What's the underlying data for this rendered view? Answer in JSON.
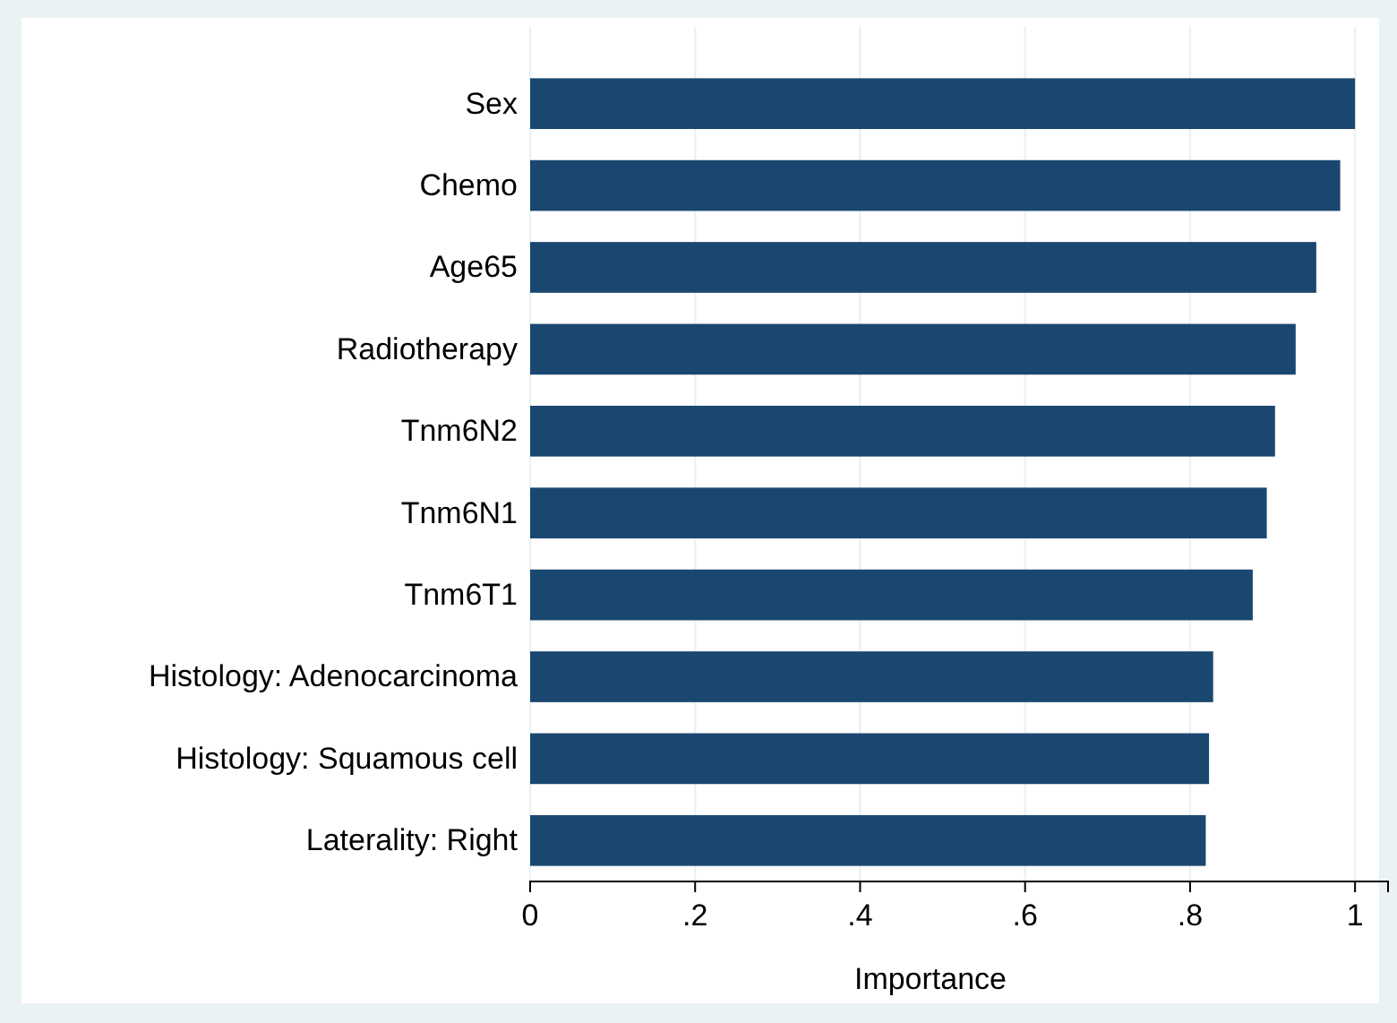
{
  "chart_data": {
    "type": "bar",
    "orientation": "horizontal",
    "xlabel": "Importance",
    "categories": [
      "Sex",
      "Chemo",
      "Age65",
      "Radiotherapy",
      "Tnm6N2",
      "Tnm6N1",
      "Tnm6T1",
      "Histology: Adenocarcinoma",
      "Histology: Squamous cell",
      "Laterality: Right"
    ],
    "values": [
      1.0,
      0.982,
      0.953,
      0.928,
      0.903,
      0.893,
      0.876,
      0.828,
      0.823,
      0.819
    ],
    "color": "#1a476f",
    "xlim": [
      0,
      1.04
    ],
    "xticks": [
      0,
      {
        "value": 0.2,
        "label": ".2"
      },
      {
        "value": 0.4,
        "label": ".4"
      },
      {
        "value": 0.6,
        "label": ".6"
      },
      {
        "value": 0.8,
        "label": ".8"
      },
      1
    ],
    "grid": "x"
  }
}
